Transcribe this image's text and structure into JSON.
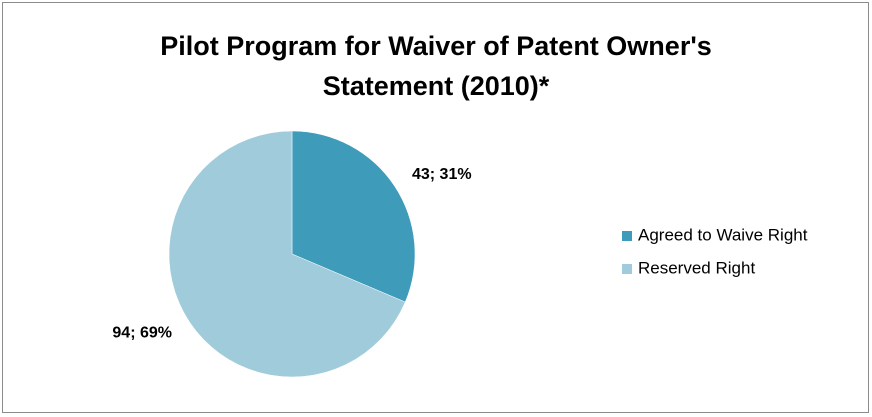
{
  "chart_data": {
    "type": "pie",
    "title": "Pilot Program for Waiver of Patent Owner's Statement (2010)*",
    "categories": [
      "Agreed to Waive Right",
      "Reserved Right"
    ],
    "values": [
      43,
      94
    ],
    "value_labels": [
      "43; 31%",
      "94; 69%"
    ],
    "colors": [
      "#3e9bb9",
      "#a0cbdb"
    ],
    "legend": "right"
  }
}
